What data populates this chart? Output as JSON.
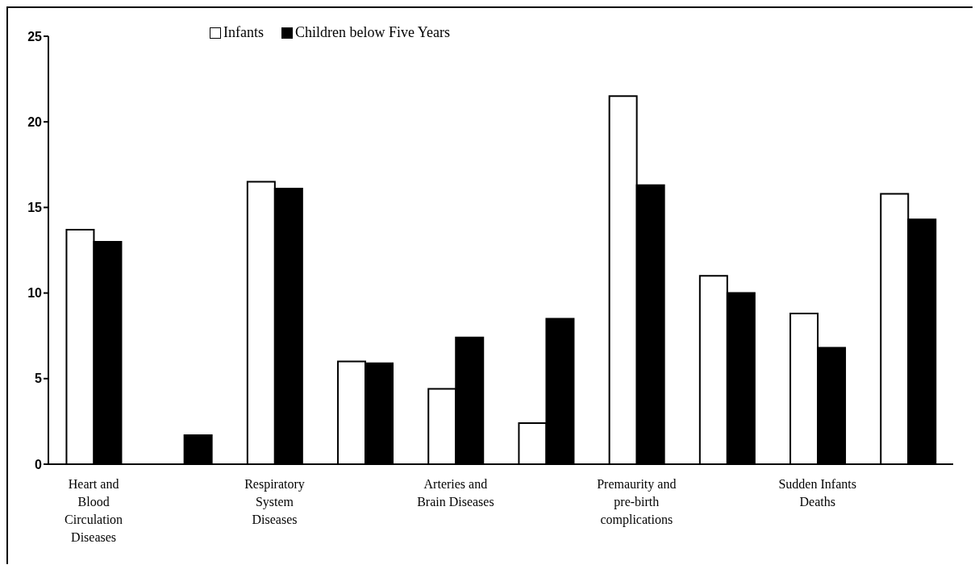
{
  "chart_data": {
    "type": "bar",
    "categories": [
      "Heart and Blood Circulation Diseases",
      null,
      "Respiratory System Diseases",
      null,
      "Arteries and Brain Diseases",
      null,
      "Premaurity and pre-birth complications",
      null,
      "Sudden Infants Deaths",
      null
    ],
    "series": [
      {
        "name": "Infants",
        "color": "#ffffff",
        "values": [
          13.7,
          null,
          16.5,
          6.0,
          4.4,
          2.4,
          21.5,
          11.0,
          8.8,
          15.8
        ]
      },
      {
        "name": "Children below Five Years",
        "color": "#000000",
        "values": [
          13.0,
          1.7,
          16.1,
          5.9,
          7.4,
          8.5,
          16.3,
          10.0,
          6.8,
          14.3
        ]
      }
    ],
    "ylim": [
      0,
      25
    ],
    "yticks": [
      0,
      5,
      10,
      15,
      20,
      25
    ],
    "grid": false,
    "legend": "top"
  }
}
